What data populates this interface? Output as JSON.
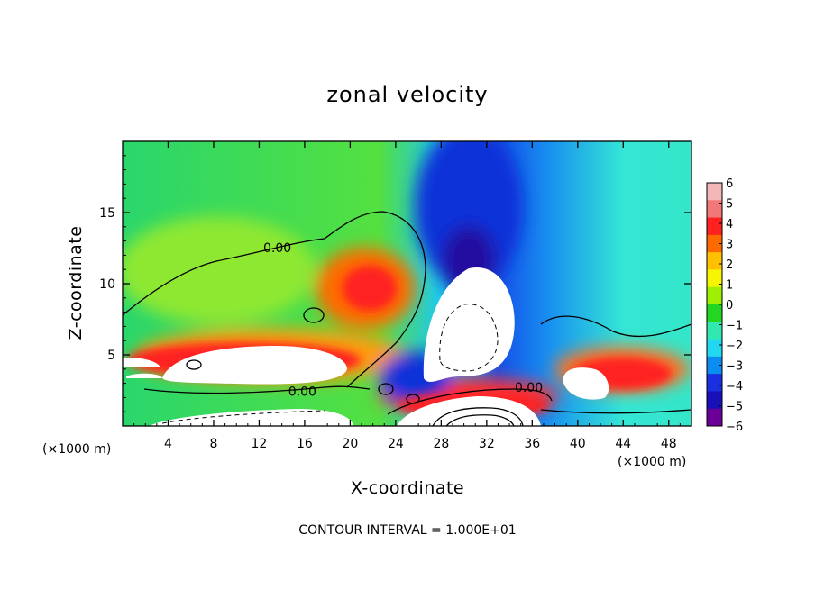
{
  "chart_data": {
    "type": "heatmap",
    "title": "zonal velocity",
    "xlabel": "X-coordinate",
    "ylabel": "Z-coordinate",
    "x_unit_left": "(×1000 m)",
    "x_unit_right": "(×1000 m)",
    "xlim": [
      0,
      50
    ],
    "ylim": [
      0,
      20
    ],
    "x_ticks": [
      4,
      8,
      12,
      16,
      20,
      24,
      28,
      32,
      36,
      40,
      44,
      48
    ],
    "x_tick_labels": [
      "4",
      "8",
      "12",
      "16",
      "20",
      "24",
      "28",
      "32",
      "36",
      "40",
      "44",
      "48"
    ],
    "y_ticks": [
      5,
      10,
      15
    ],
    "y_tick_labels": [
      "5",
      "10",
      "15"
    ],
    "contour_labels": [
      {
        "text": "0.00",
        "x": 13.6,
        "z": 12.4
      },
      {
        "text": "0.00",
        "x": 15.8,
        "z": 2.3
      },
      {
        "text": "0.00",
        "x": 35.7,
        "z": 2.6
      }
    ],
    "footer": "CONTOUR INTERVAL = 1.000E+01",
    "colorbar": {
      "min": -6,
      "max": 6,
      "tick_labels": [
        "6",
        "5",
        "4",
        "3",
        "2",
        "1",
        "0",
        "−1",
        "−2",
        "−3",
        "−4",
        "−5",
        "−6"
      ],
      "colors": [
        "#f4b6b6",
        "#f07878",
        "#ff2020",
        "#ff6a00",
        "#ffc000",
        "#f6f600",
        "#9ef000",
        "#22d622",
        "#30e8b0",
        "#22d8f0",
        "#0a8cf0",
        "#1a30e0",
        "#1810b8",
        "#6a0098"
      ]
    }
  }
}
